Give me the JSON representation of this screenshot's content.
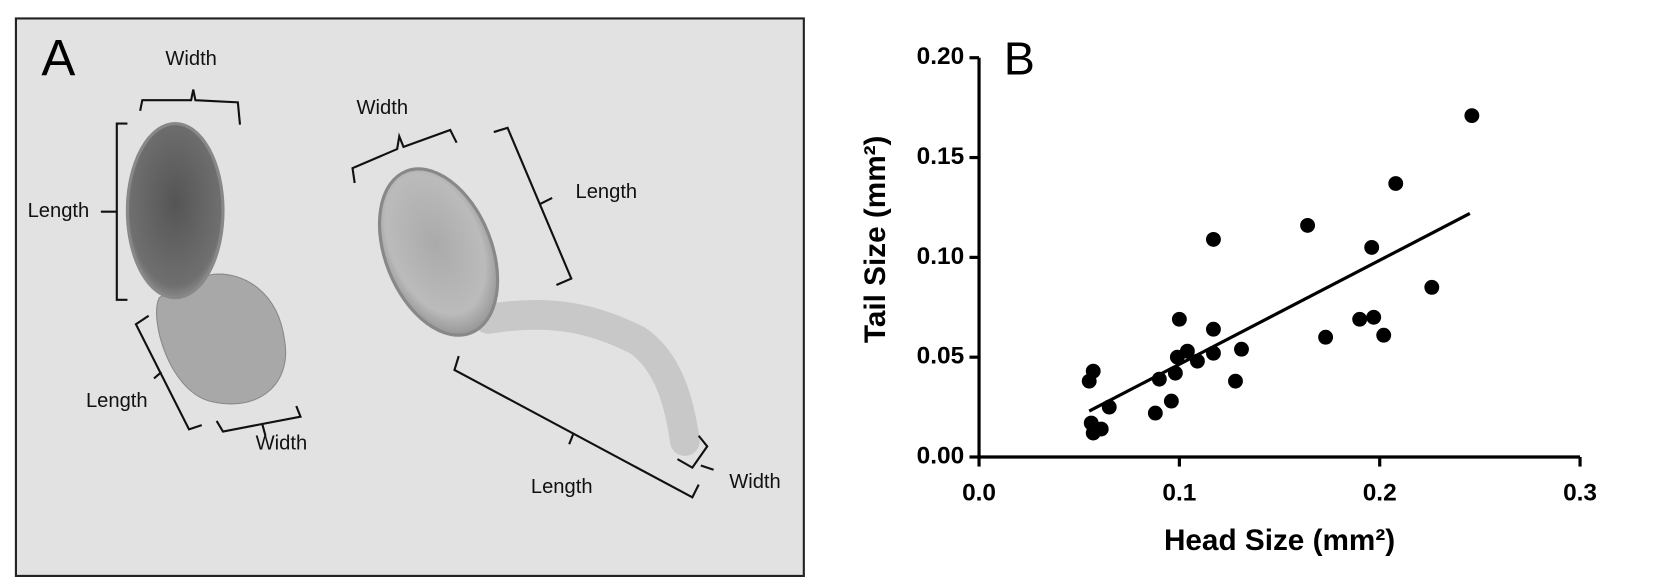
{
  "panel_a": {
    "label": "A",
    "annotations": [
      "Width",
      "Length",
      "Length",
      "Width",
      "Width",
      "Length",
      "Length",
      "Width"
    ]
  },
  "chart_data": {
    "type": "scatter",
    "panel_label": "B",
    "xlabel": "Head Size (mm²)",
    "ylabel": "Tail Size (mm²)",
    "x": [
      0.055,
      0.057,
      0.056,
      0.057,
      0.061,
      0.065,
      0.088,
      0.09,
      0.096,
      0.098,
      0.099,
      0.1,
      0.104,
      0.109,
      0.117,
      0.117,
      0.117,
      0.128,
      0.131,
      0.164,
      0.173,
      0.19,
      0.196,
      0.197,
      0.202,
      0.208,
      0.226,
      0.246
    ],
    "values": [
      0.038,
      0.043,
      0.017,
      0.012,
      0.014,
      0.025,
      0.022,
      0.039,
      0.028,
      0.042,
      0.05,
      0.069,
      0.053,
      0.048,
      0.052,
      0.064,
      0.109,
      0.038,
      0.054,
      0.116,
      0.06,
      0.069,
      0.105,
      0.07,
      0.061,
      0.137,
      0.085,
      0.171
    ],
    "color": "#000000",
    "trendline": {
      "x": [
        0.055,
        0.245
      ],
      "values": [
        0.023,
        0.122
      ]
    },
    "xlim": [
      0,
      0.3
    ],
    "ylim": [
      0,
      0.2
    ],
    "xticks": [
      {
        "value": 0,
        "label": "0.0"
      },
      0.1,
      0.2,
      0.3
    ],
    "yticks": [
      {
        "value": 0,
        "label": "0.00"
      },
      {
        "value": 0.05,
        "label": "0.05"
      },
      {
        "value": 0.1,
        "label": "0.10"
      },
      {
        "value": 0.15,
        "label": "0.15"
      },
      {
        "value": 0.2,
        "label": "0.20"
      }
    ]
  }
}
